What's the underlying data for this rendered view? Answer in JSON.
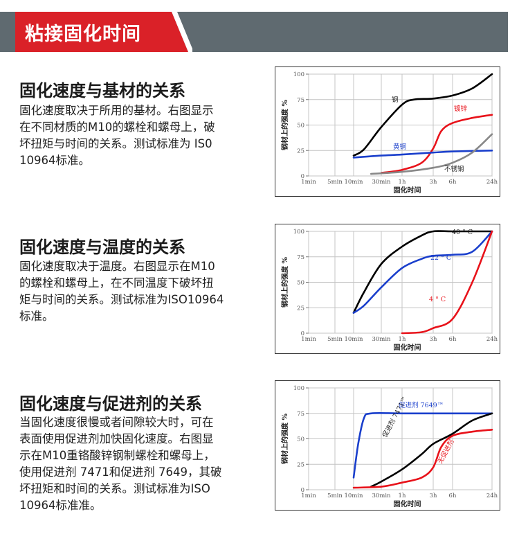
{
  "header": {
    "title": "粘接固化时间"
  },
  "sections": [
    {
      "title": "固化速度与基材的关系",
      "body_lines": [
        "固化速度取决于所用的基材。右图显示",
        "在不同材质的M10的螺栓和螺母上，破",
        "坏扭矩与时间的关系。测试标准为 IS0",
        "10964标准。"
      ]
    },
    {
      "title": "固化速度与温度的关系",
      "body_lines": [
        "固化速度取决于温度。右图显示在M10",
        "的螺栓和螺母上，在不同温度下破坏扭",
        "矩与时间的关系。测试标准为ISO10964",
        "标准。"
      ]
    },
    {
      "title": "固化速度与促进剂的关系",
      "body_lines": [
        "当固化速度很慢或者间隙较大时，可在",
        "表面使用促进剂加快固化速度。右图显",
        "示在M10重铬酸锌钢制螺栓和螺母上，",
        "使用促进剂 7471和促进剂 7649，其破",
        "坏扭矩和时间的关系。测试标准为ISO",
        "10964标准准。"
      ]
    }
  ],
  "chart_data": [
    {
      "type": "line",
      "xlabel": "固化时间",
      "ylabel": "钢材上的强度 %",
      "x_ticks": [
        "1min",
        "5min",
        "10min",
        "30min",
        "1h",
        "3h",
        "6h",
        "24h"
      ],
      "y_ticks": [
        0,
        25,
        50,
        75,
        100
      ],
      "ylim": [
        0,
        100
      ],
      "grid": true,
      "series": [
        {
          "name": "钢",
          "color": "#000000",
          "x": [
            "10min",
            "15min",
            "30min",
            "1h",
            "1.5h",
            "3h",
            "6h",
            "12h",
            "24h"
          ],
          "values": [
            20,
            26,
            48,
            70,
            75,
            76,
            79,
            86,
            100
          ]
        },
        {
          "name": "镀锌",
          "color": "#e8121a",
          "x": [
            "30min",
            "1h",
            "2h",
            "3h",
            "4h",
            "6h",
            "12h",
            "24h"
          ],
          "values": [
            3,
            6,
            13,
            27,
            44,
            52,
            57,
            60
          ]
        },
        {
          "name": "黄铜",
          "color": "#1a3fcc",
          "x": [
            "10min",
            "30min",
            "1h",
            "3h",
            "6h",
            "24h"
          ],
          "values": [
            18,
            20,
            21,
            23,
            24,
            25
          ]
        },
        {
          "name": "不锈钢",
          "color": "#888888",
          "x": [
            "20min",
            "1h",
            "3h",
            "6h",
            "12h",
            "24h"
          ],
          "values": [
            2,
            4,
            8,
            13,
            23,
            41
          ]
        }
      ]
    },
    {
      "type": "line",
      "xlabel": "固化时间",
      "ylabel": "钢材上的强度 %",
      "x_ticks": [
        "1min",
        "5min",
        "10min",
        "30min",
        "1h",
        "3h",
        "6h",
        "24h"
      ],
      "y_ticks": [
        0,
        25,
        50,
        75,
        100
      ],
      "ylim": [
        0,
        100
      ],
      "grid": true,
      "series": [
        {
          "name": "40 ° C",
          "color": "#000000",
          "x": [
            "10min",
            "15min",
            "30min",
            "1h",
            "2h",
            "3h",
            "6h",
            "24h"
          ],
          "values": [
            20,
            40,
            68,
            85,
            96,
            100,
            100,
            100
          ]
        },
        {
          "name": "22 ° C",
          "color": "#1a3fcc",
          "x": [
            "10min",
            "15min",
            "30min",
            "1h",
            "2h",
            "3h",
            "6h",
            "12h",
            "24h"
          ],
          "values": [
            20,
            27,
            45,
            64,
            73,
            76,
            77,
            80,
            100
          ]
        },
        {
          "name": "4 ° C",
          "color": "#e8121a",
          "x": [
            "1h",
            "2h",
            "3h",
            "6h",
            "12h",
            "24h"
          ],
          "values": [
            0,
            1,
            5,
            14,
            50,
            100
          ]
        }
      ]
    },
    {
      "type": "line",
      "xlabel": "固化时间",
      "ylabel": "钢材上的强度 %",
      "x_ticks": [
        "1min",
        "5min",
        "10min",
        "30min",
        "1h",
        "3h",
        "6h",
        "24h"
      ],
      "y_ticks": [
        0,
        25,
        50,
        75,
        100
      ],
      "ylim": [
        0,
        100
      ],
      "grid": true,
      "series": [
        {
          "name": "促进剂 7649™",
          "color": "#1a3fcc",
          "x": [
            "10min",
            "12min",
            "15min",
            "20min",
            "1h",
            "6h",
            "24h"
          ],
          "values": [
            12,
            45,
            70,
            75,
            75,
            75,
            75
          ]
        },
        {
          "name": "促进剂 7471™",
          "color": "#000000",
          "x": [
            "20min",
            "30min",
            "1h",
            "2h",
            "3h",
            "6h",
            "12h",
            "24h"
          ],
          "values": [
            3,
            8,
            20,
            35,
            45,
            55,
            68,
            75
          ]
        },
        {
          "name": "无促进剂",
          "color": "#e8121a",
          "x": [
            "10min",
            "30min",
            "1h",
            "2h",
            "3h",
            "4h",
            "6h",
            "12h",
            "24h"
          ],
          "values": [
            2,
            3,
            7,
            12,
            22,
            42,
            53,
            57,
            59
          ]
        }
      ]
    }
  ]
}
